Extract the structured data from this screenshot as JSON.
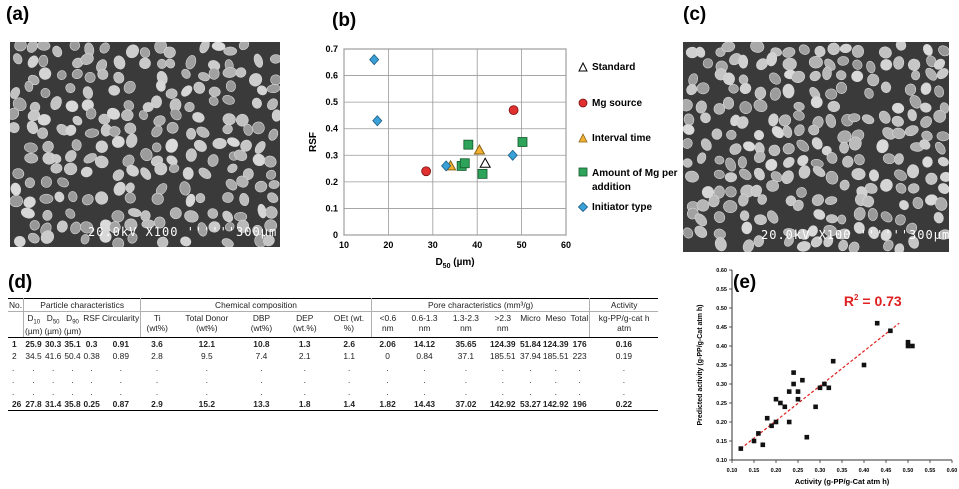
{
  "panels": {
    "a": "(a)",
    "b": "(b)",
    "c": "(c)",
    "d": "(d)",
    "e": "(e)"
  },
  "sem_a": {
    "text": "20.0kV  X100  ''''''300µm",
    "micron_icon": "scale-bar-icon"
  },
  "sem_c": {
    "text": "20.0kV  X100  ''''''300µm",
    "micron_icon": "scale-bar-icon"
  },
  "chart_data": [
    {
      "type": "scatter",
      "xlabel": "D50 (µm)",
      "xlabel_main": "D",
      "xlabel_sub": "50",
      "xlabel_unit": " (µm)",
      "ylabel": "RSF",
      "xlim": [
        10,
        60
      ],
      "ylim": [
        0,
        0.7
      ],
      "xticks": [
        "10",
        "20",
        "30",
        "40",
        "50",
        "60"
      ],
      "yticks": [
        "0",
        "0.1",
        "0.2",
        "0.3",
        "0.4",
        "0.5",
        "0.6",
        "0.7"
      ],
      "grid": true,
      "legend_position": "right",
      "series": [
        {
          "name": "Standard",
          "marker": "triangle-open",
          "color": "#ffffff",
          "stroke": "#000000",
          "points": [
            [
              41.8,
              0.27
            ]
          ]
        },
        {
          "name": "Mg source",
          "marker": "circle",
          "color": "#e03030",
          "stroke": "#7a1010",
          "points": [
            [
              28.5,
              0.24
            ],
            [
              48.2,
              0.47
            ]
          ]
        },
        {
          "name": "Interval time",
          "marker": "triangle",
          "color": "#f2b134",
          "stroke": "#8a6210",
          "points": [
            [
              34.0,
              0.26
            ],
            [
              40.5,
              0.32
            ]
          ]
        },
        {
          "name": "Amount of Mg per addition",
          "marker": "square",
          "color": "#2ea35a",
          "stroke": "#145a2c",
          "points": [
            [
              36.5,
              0.26
            ],
            [
              37.2,
              0.27
            ],
            [
              38.0,
              0.34
            ],
            [
              41.2,
              0.23
            ],
            [
              50.2,
              0.35
            ]
          ]
        },
        {
          "name": "Initiator type",
          "marker": "diamond",
          "color": "#3aa0d8",
          "stroke": "#1a5a80",
          "points": [
            [
              16.8,
              0.66
            ],
            [
              17.5,
              0.43
            ],
            [
              33.0,
              0.26
            ],
            [
              48.0,
              0.3
            ]
          ]
        }
      ]
    },
    {
      "type": "scatter",
      "xlabel": "Activity (g-PP/g-Cat atm h)",
      "ylabel": "Predicted activity (g-PP/g-Cat atm h)",
      "xlim": [
        0.1,
        0.6
      ],
      "ylim": [
        0.1,
        0.6
      ],
      "xticks": [
        "0.10",
        "0.15",
        "0.20",
        "0.25",
        "0.30",
        "0.35",
        "0.40",
        "0.45",
        "0.50",
        "0.55",
        "0.60"
      ],
      "yticks": [
        "0.10",
        "0.15",
        "0.20",
        "0.25",
        "0.30",
        "0.35",
        "0.40",
        "0.45",
        "0.50",
        "0.55",
        "0.60"
      ],
      "annotation": "R² = 0.73",
      "annotation_main": "R",
      "annotation_sup": "2",
      "annotation_rest": " = 0.73",
      "fit_line": [
        [
          0.12,
          0.13
        ],
        [
          0.48,
          0.46
        ]
      ],
      "points": [
        [
          0.12,
          0.13
        ],
        [
          0.15,
          0.15
        ],
        [
          0.16,
          0.17
        ],
        [
          0.17,
          0.14
        ],
        [
          0.18,
          0.21
        ],
        [
          0.19,
          0.19
        ],
        [
          0.2,
          0.2
        ],
        [
          0.2,
          0.26
        ],
        [
          0.21,
          0.25
        ],
        [
          0.22,
          0.24
        ],
        [
          0.23,
          0.28
        ],
        [
          0.23,
          0.2
        ],
        [
          0.24,
          0.3
        ],
        [
          0.24,
          0.33
        ],
        [
          0.25,
          0.28
        ],
        [
          0.25,
          0.26
        ],
        [
          0.26,
          0.31
        ],
        [
          0.27,
          0.16
        ],
        [
          0.29,
          0.24
        ],
        [
          0.3,
          0.29
        ],
        [
          0.31,
          0.3
        ],
        [
          0.32,
          0.29
        ],
        [
          0.33,
          0.36
        ],
        [
          0.4,
          0.35
        ],
        [
          0.43,
          0.46
        ],
        [
          0.46,
          0.44
        ],
        [
          0.5,
          0.41
        ],
        [
          0.5,
          0.4
        ],
        [
          0.51,
          0.4
        ]
      ]
    }
  ],
  "table": {
    "groups": [
      {
        "label": "No.",
        "span": 1
      },
      {
        "label": "Particle characteristics",
        "span": 5
      },
      {
        "label": "Chemical composition",
        "span": 5
      },
      {
        "label": "Pore characteristics (mm³/g)",
        "span": 7
      },
      {
        "label": "Activity",
        "span": 1
      }
    ],
    "columns": [
      "",
      "D10 (µm)",
      "D50 (µm)",
      "D90 (µm)",
      "RSF",
      "Circularity",
      "Ti (wt%)",
      "Total Donor (wt%)",
      "DBP (wt%)",
      "DEP (wt.%)",
      "OEt (wt. %)",
      "<0.6 nm",
      "0.6-1.3 nm",
      "1.3-2.3 nm",
      ">2.3 nm",
      "Micro",
      "Meso",
      "Total",
      "kg-PP/g-cat h atm"
    ],
    "rows": [
      [
        "1",
        "25.9",
        "30.3",
        "35.1",
        "0.3",
        "0.91",
        "3.6",
        "12.1",
        "10.8",
        "1.3",
        "2.6",
        "2.06",
        "14.12",
        "35.65",
        "124.39",
        "51.84",
        "124.39",
        "176",
        "0.16"
      ],
      [
        "2",
        "34.5",
        "41.6",
        "50.4",
        "0.38",
        "0.89",
        "2.8",
        "9.5",
        "7.4",
        "2.1",
        "1.1",
        "0",
        "0.84",
        "37.1",
        "185.51",
        "37.94",
        "185.51",
        "223",
        "0.19"
      ],
      [
        ".",
        ".",
        ".",
        ".",
        ".",
        ".",
        ".",
        ".",
        ".",
        ".",
        ".",
        ".",
        ".",
        ".",
        ".",
        ".",
        ".",
        ".",
        "."
      ],
      [
        ".",
        ".",
        ".",
        ".",
        ".",
        ".",
        ".",
        ".",
        ".",
        ".",
        ".",
        ".",
        ".",
        ".",
        ".",
        ".",
        ".",
        ".",
        "."
      ],
      [
        ".",
        ".",
        ".",
        ".",
        ".",
        ".",
        ".",
        ".",
        ".",
        ".",
        ".",
        ".",
        ".",
        ".",
        ".",
        ".",
        ".",
        ".",
        "."
      ],
      [
        "26",
        "27.8",
        "31.4",
        "35.8",
        "0.25",
        "0.87",
        "2.9",
        "15.2",
        "13.3",
        "1.8",
        "1.4",
        "1.82",
        "14.43",
        "37.02",
        "142.92",
        "53.27",
        "142.92",
        "196",
        "0.22"
      ]
    ]
  }
}
